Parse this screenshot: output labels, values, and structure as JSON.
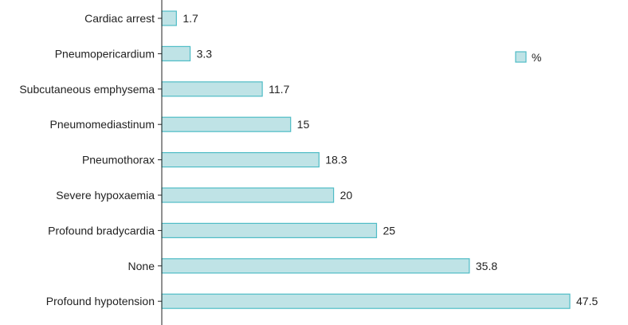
{
  "chart_data": {
    "type": "bar",
    "orientation": "horizontal",
    "categories": [
      "Cardiac arrest",
      "Pneumopericardium",
      "Subcutaneous emphysema",
      "Pneumomediastinum",
      "Pneumothorax",
      "Severe hypoxaemia",
      "Profound bradycardia",
      "None",
      "Profound hypotension"
    ],
    "series": [
      {
        "name": "%",
        "values": [
          1.7,
          3.3,
          11.7,
          15,
          18.3,
          20,
          25,
          35.8,
          47.5
        ]
      }
    ],
    "value_labels": [
      "1.7",
      "3.3",
      "11.7",
      "15",
      "18.3",
      "20",
      "25",
      "35.8",
      "47.5"
    ],
    "title": "",
    "xlabel": "",
    "ylabel": "",
    "xlim": [
      0,
      50
    ],
    "grid": false,
    "legend_position": "top-right",
    "colors": {
      "bar_fill": "#bfe3e6",
      "bar_stroke": "#4fbcc6",
      "axis": "#222222"
    }
  }
}
